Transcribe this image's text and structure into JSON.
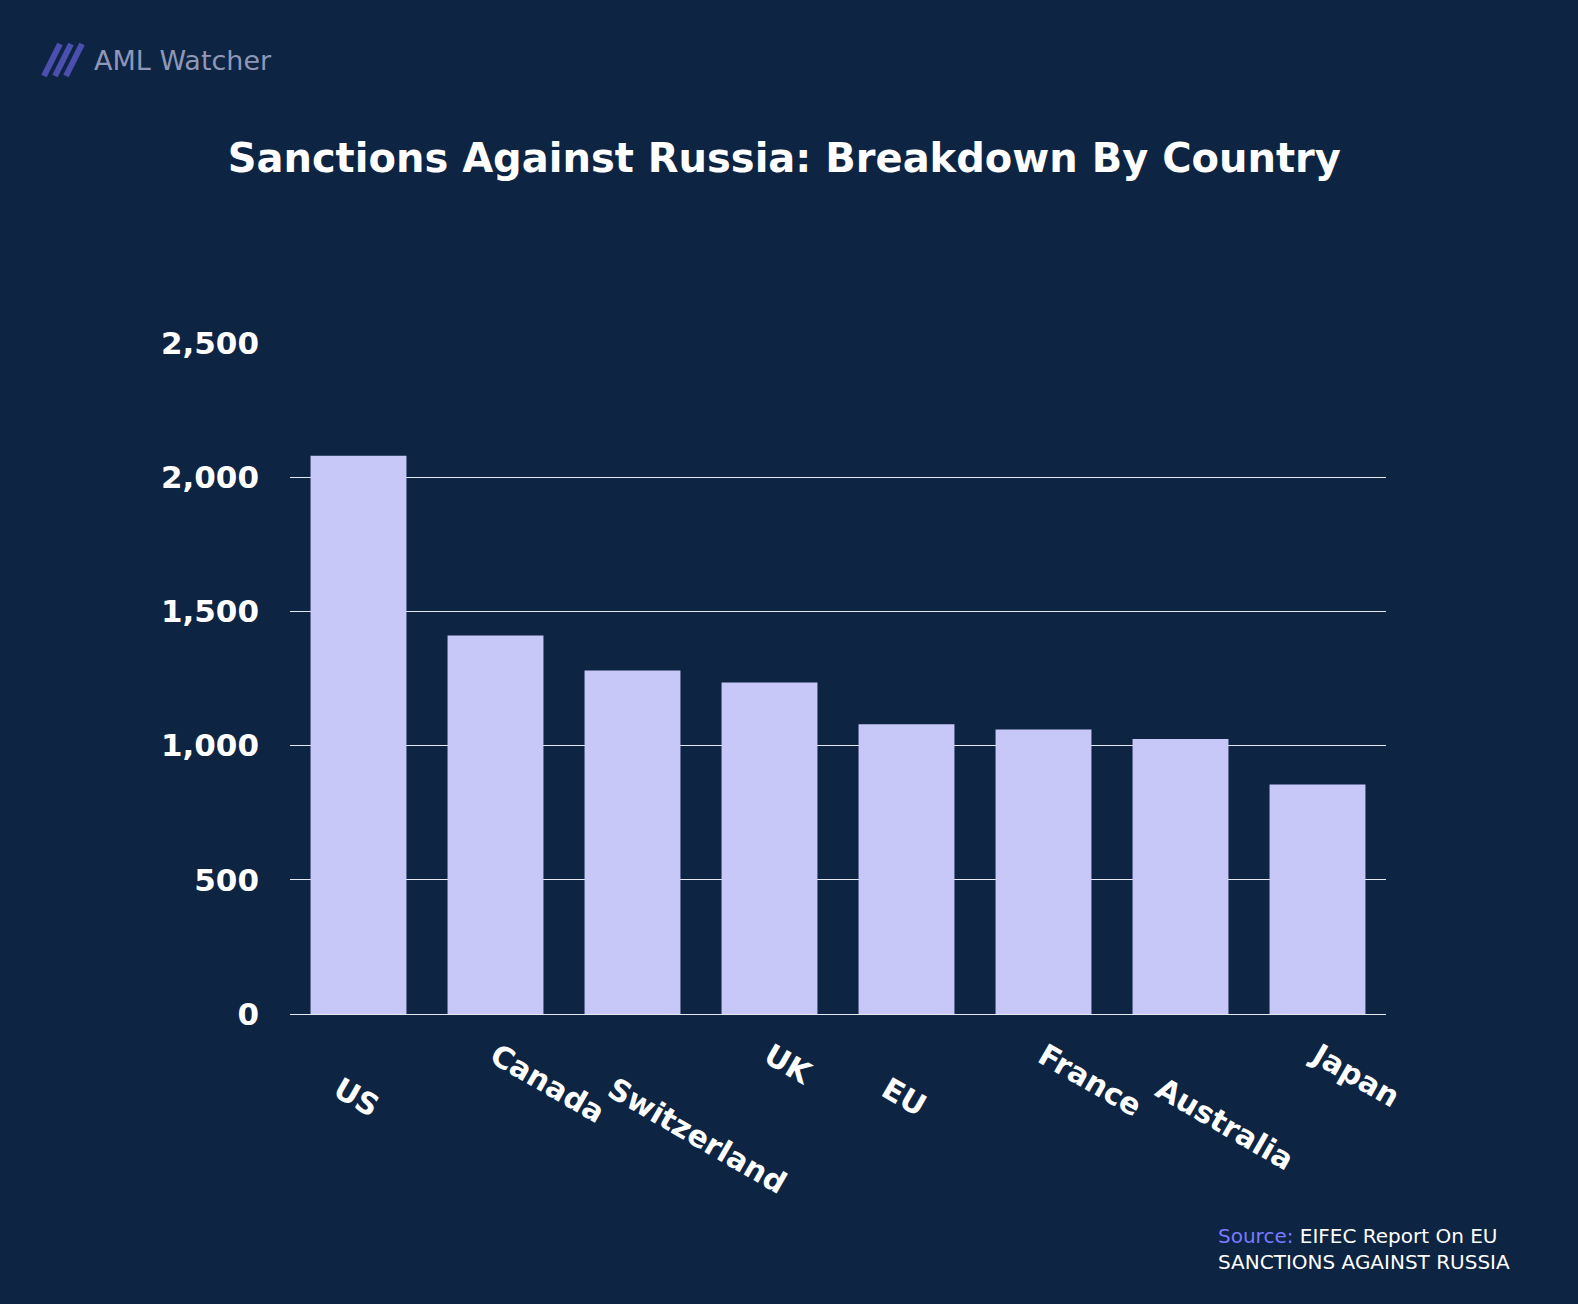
{
  "chart_data": {
    "type": "bar",
    "title": "Sanctions Against Russia: Breakdown By Country",
    "categories": [
      "US",
      "Canada",
      "Switzerland",
      "UK",
      "EU",
      "France",
      "Australia",
      "Japan"
    ],
    "values": [
      2080,
      1410,
      1280,
      1235,
      1080,
      1060,
      1025,
      855
    ],
    "color": "#c8c8f8",
    "ylim": [
      0,
      2500
    ],
    "yticks": [
      0,
      500,
      {
        "value": 1000,
        "label": "1,000"
      },
      {
        "value": 1500,
        "label": "1,500"
      },
      {
        "value": 2000,
        "label": "2,000"
      },
      {
        "value": 2500,
        "label": "2,500"
      }
    ],
    "grid": true,
    "annotations": [
      "AML Watcher",
      "Source:",
      "EIFEC Report On EU",
      "SANCTIONS AGAINST RUSSIA"
    ]
  }
}
